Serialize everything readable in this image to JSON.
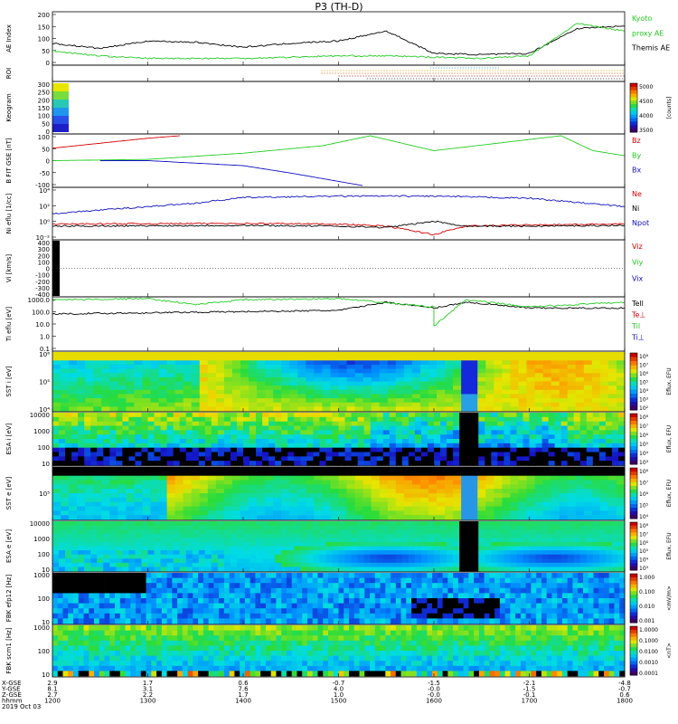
{
  "title": "P3 (TH-D)",
  "colors": {
    "black": "#000000",
    "green": "#22cc22",
    "red": "#d40000",
    "blue": "#1010c0",
    "cyan": "#22aaee"
  },
  "panels": [
    {
      "key": "ae",
      "ylabel": "AE Index",
      "yticks": [
        "200",
        "150",
        "100",
        "50",
        "0"
      ],
      "legend": [
        {
          "text": "Kyoto",
          "color": "#22cc22"
        },
        {
          "text": "proxy AE",
          "color": "#22cc22"
        },
        {
          "text": "Themis AE",
          "color": "#000000"
        }
      ]
    },
    {
      "key": "roi",
      "ylabel": "ROI",
      "yticks": [],
      "legend": []
    },
    {
      "key": "keogram",
      "ylabel": "Keogram",
      "yticks": [
        "300",
        "250",
        "200",
        "150",
        "100",
        "50",
        "0"
      ],
      "colorbar": {
        "ticks": [
          "5000",
          "4500",
          "4000",
          "3500"
        ],
        "label": "[counts]"
      },
      "legend": []
    },
    {
      "key": "bfield",
      "ylabel": "B FIT GSE [nT]",
      "yticks": [
        "100",
        "50",
        "0",
        "-50",
        "-100"
      ],
      "legend": [
        {
          "text": "Bz",
          "color": "#d40000"
        },
        {
          "text": "By",
          "color": "#22cc22"
        },
        {
          "text": "Bx",
          "color": "#1010c0"
        }
      ]
    },
    {
      "key": "density",
      "ylabel": "Ni eflu [1/cc]",
      "yticks": [
        "10⁴",
        "10²",
        "10⁰",
        "10⁻²"
      ],
      "legend": [
        {
          "text": "Ne",
          "color": "#d40000"
        },
        {
          "text": "Ni",
          "color": "#000000"
        },
        {
          "text": "Npot",
          "color": "#1010c0"
        }
      ]
    },
    {
      "key": "velocity",
      "ylabel": "Vi [km/s]",
      "yticks": [
        "400",
        "300",
        "200",
        "100",
        "0",
        "-100",
        "-200",
        "-300",
        "-400"
      ],
      "legend": [
        {
          "text": "Viz",
          "color": "#d40000"
        },
        {
          "text": "Viy",
          "color": "#22cc22"
        },
        {
          "text": "Vix",
          "color": "#1010c0"
        }
      ]
    },
    {
      "key": "temperature",
      "ylabel": "Ti eflu [eV]",
      "yticks": [
        "1000.0",
        "100.0",
        "10.0",
        "1.0",
        "0.1"
      ],
      "legend": [
        {
          "text": "Tell",
          "color": "#000000"
        },
        {
          "text": "Te⊥",
          "color": "#d40000"
        },
        {
          "text": "Til",
          "color": "#22cc22"
        },
        {
          "text": "Ti⊥",
          "color": "#1010c0"
        }
      ]
    },
    {
      "key": "sst_i",
      "ylabel": "SST i [eV]",
      "yticks": [
        "10⁶",
        "10⁵",
        "10⁴"
      ],
      "colorbar": {
        "ticks": [
          "10⁸",
          "10⁷",
          "10⁶",
          "10⁵",
          "10⁴",
          "10³",
          "10²"
        ],
        "label": "Eflux, EFU"
      },
      "legend": []
    },
    {
      "key": "esa_i",
      "ylabel": "ESA i [eV]",
      "yticks": [
        "10000",
        "1000",
        "100",
        "10"
      ],
      "colorbar": {
        "ticks": [
          "10⁸",
          "10⁷",
          "10⁶",
          "10⁵",
          "10⁴",
          "10³"
        ],
        "label": "Eflux, EFU"
      },
      "legend": []
    },
    {
      "key": "sst_e",
      "ylabel": "SST e [eV]",
      "yticks": [
        "10⁵"
      ],
      "colorbar": {
        "ticks": [
          "10⁸",
          "10⁷",
          "10⁶",
          "10⁵",
          "10⁴"
        ],
        "label": "Eflux, EFU"
      },
      "legend": []
    },
    {
      "key": "esa_e",
      "ylabel": "ESA e [eV]",
      "yticks": [
        "10000",
        "1000",
        "100",
        "10"
      ],
      "colorbar": {
        "ticks": [
          "10⁸",
          "10⁷",
          "10⁶",
          "10⁵",
          "10⁴",
          "10³"
        ],
        "label": "Eflux, EFU"
      },
      "legend": []
    },
    {
      "key": "fbk_e",
      "ylabel": "FBK efp12 [Hz]",
      "yticks": [
        "1000",
        "100",
        "10"
      ],
      "colorbar": {
        "ticks": [
          "1.000",
          "0.100",
          "0.010",
          "0.001"
        ],
        "label": "<mV/m>"
      },
      "legend": []
    },
    {
      "key": "fbk_b",
      "ylabel": "FBK scm1 [Hz]",
      "yticks": [
        "1000",
        "100",
        "10"
      ],
      "colorbar": {
        "ticks": [
          "1.0000",
          "0.1000",
          "0.0100",
          "0.0010",
          "0.0001"
        ],
        "label": "<nT>"
      },
      "legend": []
    }
  ],
  "footer": {
    "row_labels": [
      "X-GSE",
      "Y-GSE",
      "Z-GSE",
      "hhmm",
      "2019 Oct 03"
    ],
    "columns": [
      {
        "values": [
          "2.9",
          "8.1",
          "2.7",
          "1200"
        ]
      },
      {
        "values": [
          "1.7",
          "3.1",
          "2.2",
          "1300"
        ]
      },
      {
        "values": [
          "0.6",
          "7.6",
          "1.7",
          "1400"
        ]
      },
      {
        "values": [
          "-0.7",
          "4.0",
          "1.0",
          "1500"
        ]
      },
      {
        "values": [
          "-1.5",
          "-0.0",
          "-0.0",
          "1600"
        ]
      },
      {
        "values": [
          "-2.1",
          "-1.5",
          "-0.1",
          "1700"
        ]
      },
      {
        "values": [
          "-4.8",
          "-0.7",
          "0.6",
          "1800"
        ]
      }
    ]
  },
  "chart_data": {
    "type": "line",
    "title": "P3 (TH-D)",
    "x": [
      1200,
      1300,
      1400,
      1500,
      1600,
      1700,
      1800
    ],
    "xlabel": "hhmm",
    "series": [
      {
        "name": "Themis AE",
        "panel": "ae",
        "x": [
          1200,
          1230,
          1300,
          1330,
          1400,
          1430,
          1500,
          1530,
          1600,
          1630,
          1700,
          1730,
          1800
        ],
        "values": [
          80,
          60,
          90,
          85,
          65,
          80,
          90,
          130,
          40,
          35,
          40,
          140,
          150
        ]
      },
      {
        "name": "Kyoto proxy AE",
        "panel": "ae",
        "x": [
          1200,
          1230,
          1300,
          1330,
          1400,
          1430,
          1500,
          1530,
          1600,
          1630,
          1700,
          1730,
          1800
        ],
        "values": [
          50,
          30,
          20,
          20,
          20,
          25,
          30,
          30,
          25,
          20,
          30,
          160,
          130
        ]
      },
      {
        "name": "Bz",
        "panel": "bfield",
        "x": [
          1200,
          1230,
          1300,
          1320
        ],
        "values": [
          50,
          70,
          90,
          100
        ]
      },
      {
        "name": "By",
        "panel": "bfield",
        "x": [
          1200,
          1300,
          1400,
          1450,
          1520,
          1600,
          1720,
          1740,
          1800
        ],
        "values": [
          0,
          5,
          30,
          60,
          100,
          40,
          100,
          40,
          20
        ]
      },
      {
        "name": "Bx",
        "panel": "bfield",
        "x": [
          1230,
          1300,
          1400,
          1430,
          1515
        ],
        "values": [
          0,
          0,
          -20,
          -50,
          -100
        ]
      },
      {
        "name": "Npot",
        "panel": "density",
        "x": [
          1200,
          1300,
          1330,
          1400,
          1500,
          1600,
          1700,
          1800
        ],
        "values": [
          1.5,
          2.5,
          3.0,
          3.8,
          4.0,
          4.0,
          3.7,
          2.5
        ]
      },
      {
        "name": "Ne",
        "panel": "density",
        "x": [
          1200,
          1400,
          1500,
          1530,
          1600,
          1620,
          1700,
          1800
        ],
        "values": [
          0.0,
          0.1,
          0.0,
          -0.3,
          -1.5,
          -0.3,
          -0.1,
          0.0
        ]
      },
      {
        "name": "Ni",
        "panel": "density",
        "x": [
          1200,
          1400,
          1500,
          1530,
          1600,
          1620,
          1700,
          1800
        ],
        "values": [
          -0.3,
          -0.2,
          -0.3,
          -0.5,
          0.4,
          -0.3,
          -0.3,
          -0.2
        ]
      },
      {
        "name": "Tell",
        "panel": "temperature",
        "x": [
          1200,
          1300,
          1400,
          1500,
          1530,
          1600,
          1620,
          1700,
          1800
        ],
        "values": [
          2.0,
          2.1,
          2.2,
          2.3,
          3.0,
          2.5,
          3.0,
          2.5,
          2.5
        ]
      },
      {
        "name": "Til",
        "panel": "temperature",
        "x": [
          1200,
          1300,
          1330,
          1400,
          1500,
          1560,
          1600,
          1620,
          1700,
          1800
        ],
        "values": [
          3.2,
          3.3,
          2.8,
          3.2,
          3.3,
          2.6,
          1.0,
          3.2,
          2.6,
          3.0
        ]
      }
    ],
    "ylim_ae": [
      0,
      200
    ]
  }
}
